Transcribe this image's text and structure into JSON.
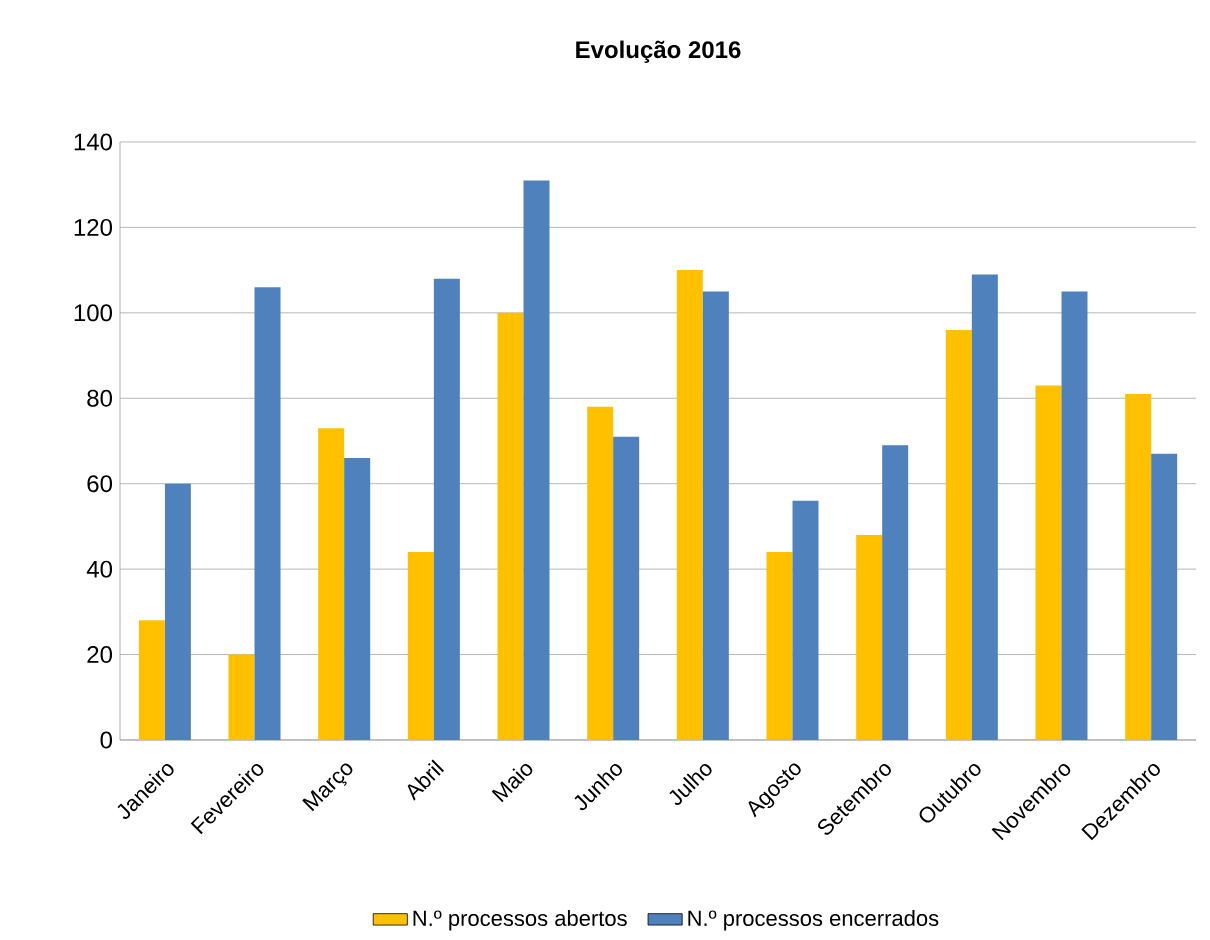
{
  "chart_data": {
    "type": "bar",
    "title": "Evolução 2016",
    "categories": [
      "Janeiro",
      "Fevereiro",
      "Março",
      "Abril",
      "Maio",
      "Junho",
      "Julho",
      "Agosto",
      "Setembro",
      "Outubro",
      "Novembro",
      "Dezembro"
    ],
    "series": [
      {
        "name": "N.º processos abertos",
        "color": "#ffc000",
        "values": [
          28,
          20,
          73,
          44,
          100,
          78,
          110,
          44,
          48,
          96,
          83,
          81
        ]
      },
      {
        "name": "N.º processos encerrados",
        "color": "#4f81bd",
        "values": [
          60,
          106,
          66,
          108,
          131,
          71,
          105,
          56,
          69,
          109,
          105,
          67
        ]
      }
    ],
    "ylim": [
      0,
      140
    ],
    "yticks": [
      0,
      20,
      40,
      60,
      80,
      100,
      120,
      140
    ],
    "grid": "y",
    "legend": "bottom"
  }
}
